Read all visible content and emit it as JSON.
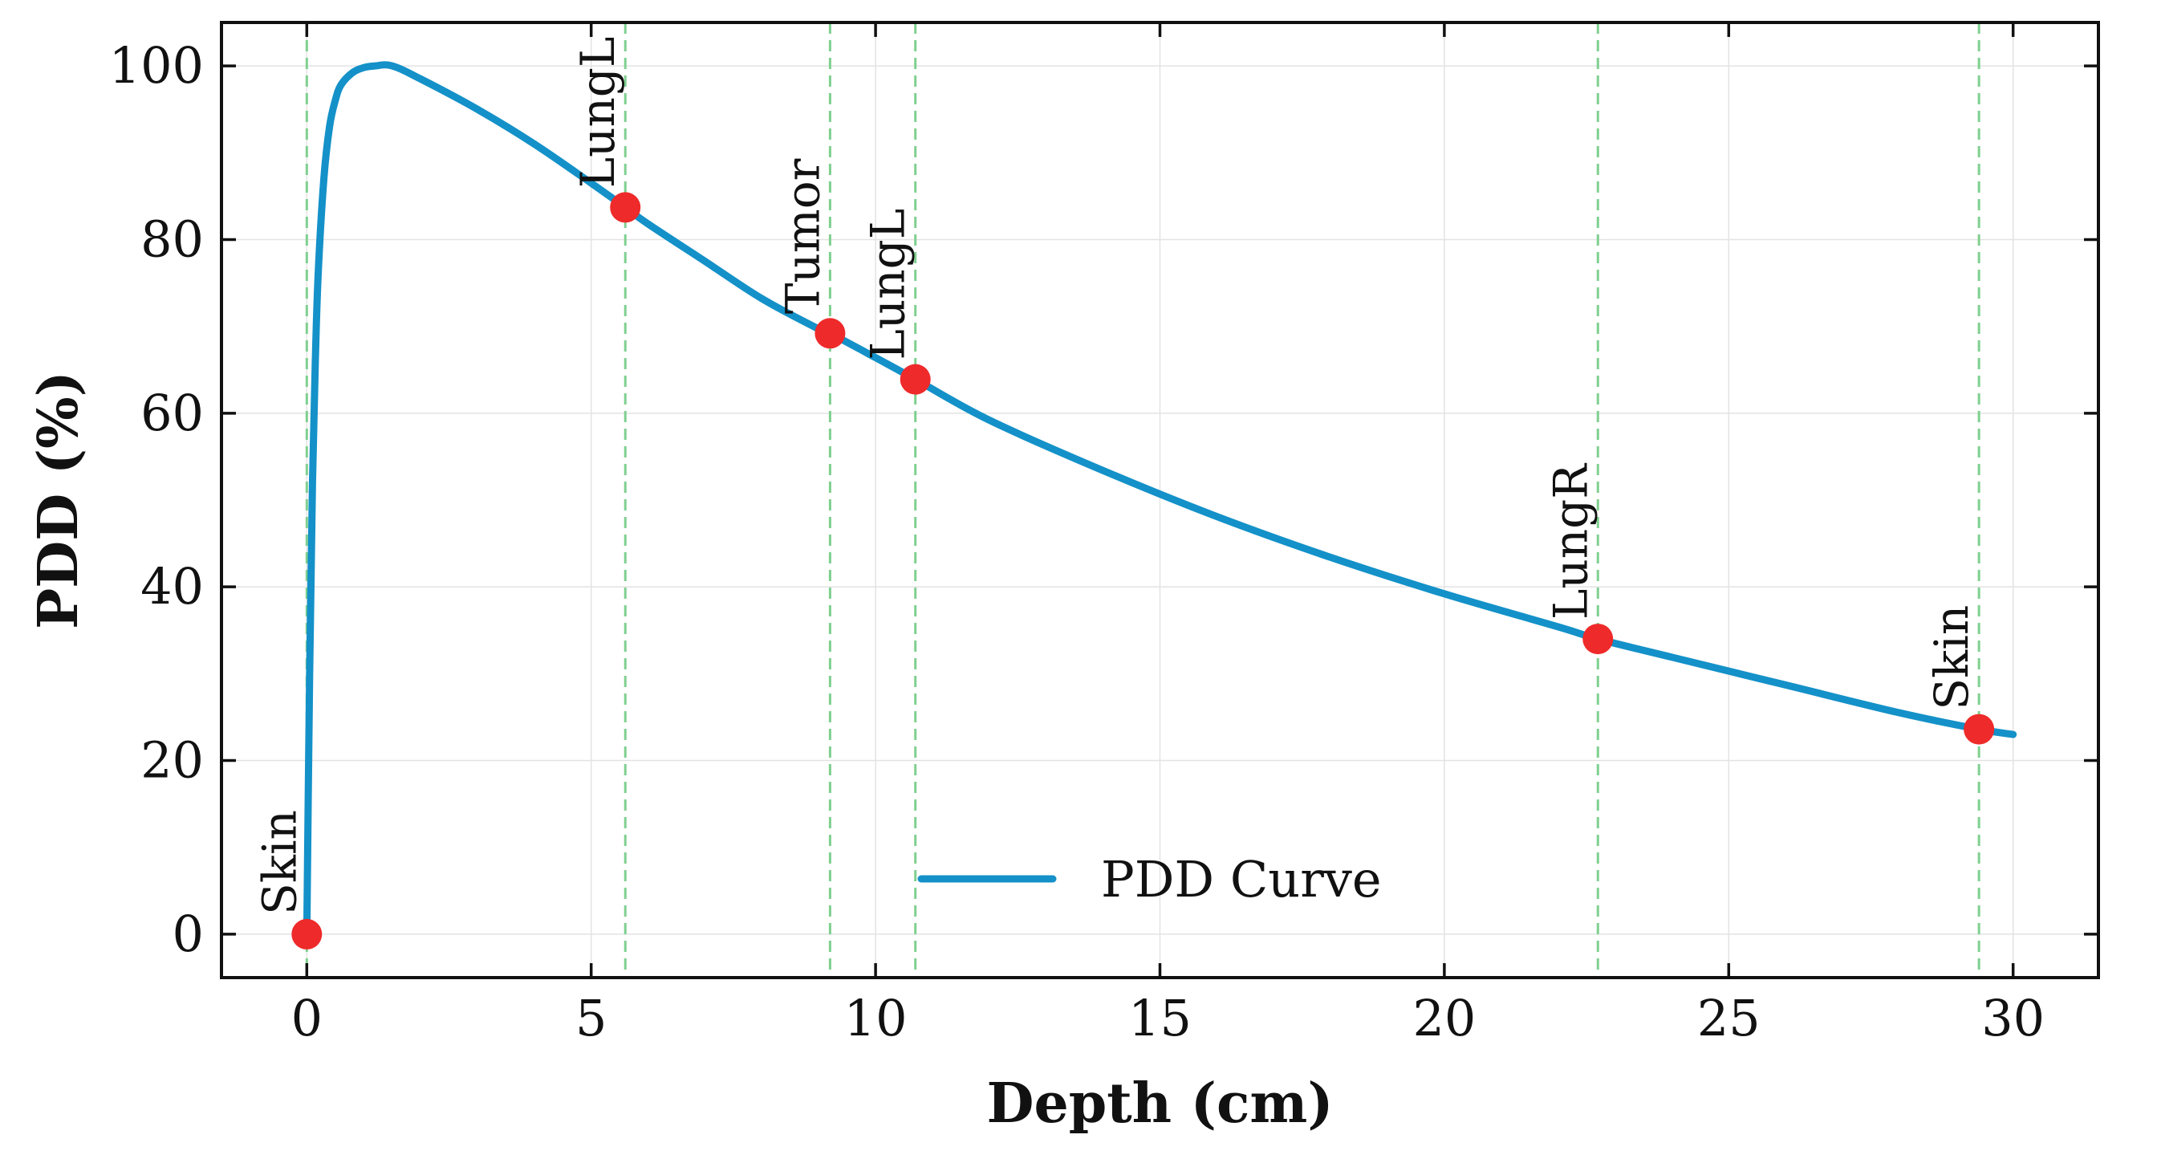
{
  "chart_data": {
    "type": "line",
    "xlabel": "Depth (cm)",
    "ylabel": "PDD (%)",
    "xlim": [
      -1.5,
      31.5
    ],
    "ylim": [
      -5,
      105
    ],
    "xticks": [
      0,
      5,
      10,
      15,
      20,
      25,
      30
    ],
    "yticks": [
      0,
      20,
      40,
      60,
      80,
      100
    ],
    "grid": true,
    "legend": {
      "position": "bottom-center",
      "entries": [
        "PDD Curve"
      ]
    },
    "series": [
      {
        "name": "PDD Curve",
        "color": "#1491c8",
        "x": [
          0,
          0.05,
          0.1,
          0.15,
          0.2,
          0.3,
          0.4,
          0.5,
          0.6,
          0.8,
          1.0,
          1.2,
          1.5,
          2,
          3,
          4,
          5,
          5.6,
          6,
          7,
          8,
          9,
          9.2,
          10,
          10.7,
          12,
          14,
          16,
          18,
          20,
          22,
          22.7,
          24,
          26,
          28,
          29.4,
          30
        ],
        "y": [
          0,
          30,
          52,
          66,
          76,
          87,
          93,
          96,
          97.8,
          99.2,
          99.8,
          100,
          100,
          98.5,
          95,
          91,
          86.5,
          83.7,
          81.8,
          77.5,
          73.2,
          69.7,
          69.2,
          66.4,
          63.9,
          59.2,
          53.4,
          48.1,
          43.4,
          39.2,
          35.4,
          34,
          31.9,
          28.7,
          25.5,
          23.6,
          23
        ]
      }
    ],
    "markers": {
      "color": "#ee2a2a",
      "line_color": "#7fd08f",
      "points": [
        {
          "x": 0,
          "y": 0,
          "label": "Skin"
        },
        {
          "x": 5.6,
          "y": 83.7,
          "label": "LungL"
        },
        {
          "x": 9.2,
          "y": 69.2,
          "label": "Tumor"
        },
        {
          "x": 10.7,
          "y": 63.9,
          "label": "LungL"
        },
        {
          "x": 22.7,
          "y": 34,
          "label": "LungR"
        },
        {
          "x": 29.4,
          "y": 23.6,
          "label": "Skin"
        }
      ]
    }
  }
}
